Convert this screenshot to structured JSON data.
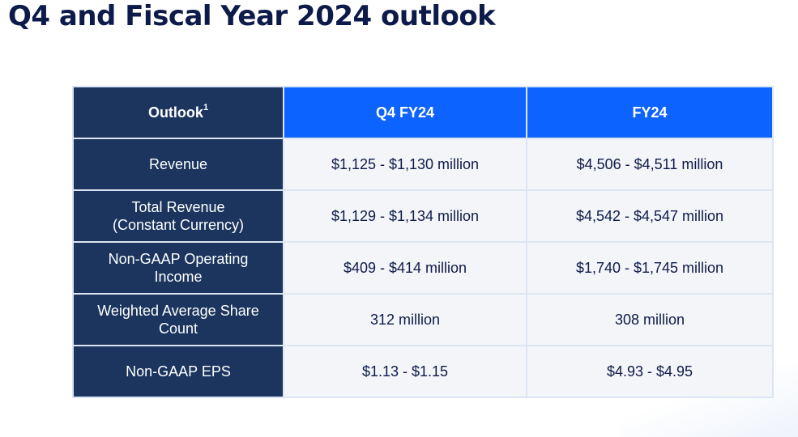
{
  "title": "Q4 and Fiscal Year 2024 outlook",
  "table": {
    "header": {
      "label": "Outlook",
      "label_footnote": "1",
      "col1": "Q4 FY24",
      "col2": "FY24"
    },
    "rows": [
      {
        "label_line1": "Revenue",
        "label_line2": "",
        "q4": "$1,125 - $1,130 million",
        "fy": "$4,506 - $4,511 million"
      },
      {
        "label_line1": "Total Revenue",
        "label_line2": "(Constant Currency)",
        "q4": "$1,129 - $1,134 million",
        "fy": "$4,542 - $4,547 million"
      },
      {
        "label_line1": "Non-GAAP Operating",
        "label_line2": "Income",
        "q4": "$409 - $414 million",
        "fy": "$1,740 - $1,745 million"
      },
      {
        "label_line1": "Weighted Average Share",
        "label_line2": "Count",
        "q4": "312 million",
        "fy": "308 million"
      },
      {
        "label_line1": "Non-GAAP EPS",
        "label_line2": "",
        "q4": "$1.13 - $1.15",
        "fy": "$4.93 - $4.95"
      }
    ]
  },
  "colors": {
    "title": "#0d1b4a",
    "label_bg": "#1b355e",
    "header_accent": "#0d63ff",
    "cell_bg": "#f4f5f8"
  }
}
